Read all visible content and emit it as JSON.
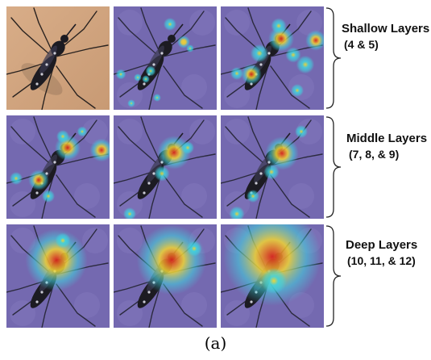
{
  "figure": {
    "caption": "(a)",
    "groups": [
      {
        "label": "Shallow Layers",
        "layers": "(4 & 5)"
      },
      {
        "label": "Middle Layers",
        "layers": "(7, 8, & 9)"
      },
      {
        "label": "Deep Layers",
        "layers": "(10, 11, & 12)"
      }
    ],
    "colors": {
      "photo_background": "#c89a74",
      "heatmap_background": "#7469b0",
      "heat_low": "#3fd4e0",
      "heat_mid": "#f2d533",
      "heat_high": "#d8261d",
      "mosquito_body": "#1c1b22"
    }
  }
}
